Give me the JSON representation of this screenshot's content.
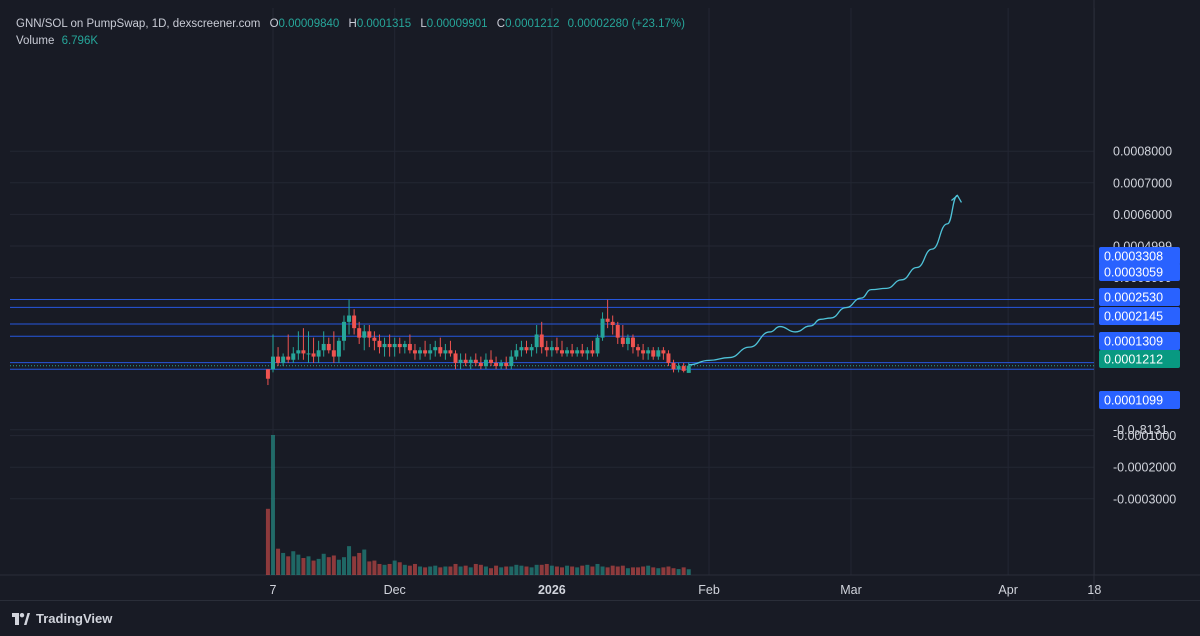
{
  "legend": {
    "pair": "GNN/SOL on PumpSwap, 1D, dexscreener.com",
    "o_key": "O",
    "o_val": "0.00009840",
    "h_key": "H",
    "h_val": "0.0001315",
    "l_key": "L",
    "l_val": "0.00009901",
    "c_key": "C",
    "c_val": "0.0001212",
    "change": "0.00002280 (+23.17%)",
    "volume_key": "Volume",
    "volume_val": "6.796K"
  },
  "footer": {
    "brand": "TradingView"
  },
  "colors": {
    "background": "#181b25",
    "grid": "#232733",
    "up": "#26a69a",
    "down": "#ef5350",
    "level_line": "#2962ff",
    "level_tag": "#2962ff",
    "price_tag": "#089981",
    "projection": "#4fc3d9",
    "axis_text": "#d1d4dc"
  },
  "chart_data": {
    "type": "candlestick",
    "y_tick_labels": [
      "0.0008000",
      "0.0007000",
      "0.0006000",
      "0.0004999",
      "0.0003999",
      "-0.0₀8131",
      "-0.0001000",
      "-0.0002000",
      "-0.0003000"
    ],
    "y_tick_values": [
      0.0008,
      0.0007,
      0.0006,
      0.0005,
      0.0004,
      -8.131e-05,
      -0.0001,
      -0.0002,
      -0.0003
    ],
    "x_tick_labels": [
      "7",
      "Dec",
      "2026",
      "Feb",
      "Mar",
      "Apr",
      "18"
    ],
    "x_tick_dates": [
      "2025-11-07",
      "2025-12-01",
      "2026-01-01",
      "2026-02-01",
      "2026-03-01",
      "2026-04-01",
      "2026-04-18"
    ],
    "horizontal_levels": [
      0.0003308,
      0.0003059,
      0.000253,
      0.0002145,
      0.0001309,
      0.0001099
    ],
    "level_labels": [
      "0.0003308",
      "0.0003059",
      "0.0002530",
      "0.0002145",
      "0.0001309",
      "0.0001099"
    ],
    "last_price": 0.0001212,
    "last_price_label": "0.0001212",
    "candles": [
      {
        "date": "2025-11-06",
        "o": 0.00011,
        "h": 0.00011,
        "l": 6e-05,
        "c": 8e-05
      },
      {
        "date": "2025-11-07",
        "o": 0.00011,
        "h": 0.00022,
        "l": 0.0001,
        "c": 0.00015
      },
      {
        "date": "2025-11-08",
        "o": 0.00015,
        "h": 0.00018,
        "l": 0.00012,
        "c": 0.00013
      },
      {
        "date": "2025-11-09",
        "o": 0.00013,
        "h": 0.00016,
        "l": 0.00012,
        "c": 0.00015
      },
      {
        "date": "2025-11-10",
        "o": 0.00015,
        "h": 0.00022,
        "l": 0.00013,
        "c": 0.00014
      },
      {
        "date": "2025-11-11",
        "o": 0.00014,
        "h": 0.00018,
        "l": 0.00013,
        "c": 0.00016
      },
      {
        "date": "2025-11-12",
        "o": 0.00016,
        "h": 0.00023,
        "l": 0.00014,
        "c": 0.00017
      },
      {
        "date": "2025-11-13",
        "o": 0.00017,
        "h": 0.00024,
        "l": 0.00014,
        "c": 0.00016
      },
      {
        "date": "2025-11-14",
        "o": 0.00016,
        "h": 0.00023,
        "l": 0.00013,
        "c": 0.00016
      },
      {
        "date": "2025-11-15",
        "o": 0.00016,
        "h": 0.00021,
        "l": 0.00013,
        "c": 0.00015
      },
      {
        "date": "2025-11-16",
        "o": 0.00015,
        "h": 0.0002,
        "l": 0.00013,
        "c": 0.00017
      },
      {
        "date": "2025-11-17",
        "o": 0.00017,
        "h": 0.00023,
        "l": 0.00015,
        "c": 0.00019
      },
      {
        "date": "2025-11-18",
        "o": 0.00019,
        "h": 0.00021,
        "l": 0.00016,
        "c": 0.00017
      },
      {
        "date": "2025-11-19",
        "o": 0.00017,
        "h": 0.00023,
        "l": 0.00013,
        "c": 0.00015
      },
      {
        "date": "2025-11-20",
        "o": 0.00015,
        "h": 0.00021,
        "l": 0.00013,
        "c": 0.0002
      },
      {
        "date": "2025-11-21",
        "o": 0.0002,
        "h": 0.00028,
        "l": 0.00017,
        "c": 0.00026
      },
      {
        "date": "2025-11-22",
        "o": 0.00026,
        "h": 0.00033,
        "l": 0.00022,
        "c": 0.00028
      },
      {
        "date": "2025-11-23",
        "o": 0.00028,
        "h": 0.0003,
        "l": 0.00022,
        "c": 0.00024
      },
      {
        "date": "2025-11-24",
        "o": 0.00024,
        "h": 0.00026,
        "l": 0.00019,
        "c": 0.00021
      },
      {
        "date": "2025-11-25",
        "o": 0.00021,
        "h": 0.00025,
        "l": 0.00017,
        "c": 0.00023
      },
      {
        "date": "2025-11-26",
        "o": 0.00023,
        "h": 0.00025,
        "l": 0.00018,
        "c": 0.00021
      },
      {
        "date": "2025-11-27",
        "o": 0.00021,
        "h": 0.00023,
        "l": 0.00017,
        "c": 0.0002
      },
      {
        "date": "2025-11-28",
        "o": 0.0002,
        "h": 0.00022,
        "l": 0.00016,
        "c": 0.00018
      },
      {
        "date": "2025-11-29",
        "o": 0.00018,
        "h": 0.00021,
        "l": 0.00015,
        "c": 0.00019
      },
      {
        "date": "2025-11-30",
        "o": 0.00019,
        "h": 0.00022,
        "l": 0.00015,
        "c": 0.00018
      },
      {
        "date": "2025-12-01",
        "o": 0.00018,
        "h": 0.00021,
        "l": 0.00015,
        "c": 0.00019
      },
      {
        "date": "2025-12-02",
        "o": 0.00019,
        "h": 0.00021,
        "l": 0.00016,
        "c": 0.00018
      },
      {
        "date": "2025-12-03",
        "o": 0.00018,
        "h": 0.0002,
        "l": 0.00016,
        "c": 0.00019
      },
      {
        "date": "2025-12-04",
        "o": 0.00019,
        "h": 0.00022,
        "l": 0.00016,
        "c": 0.00017
      },
      {
        "date": "2025-12-05",
        "o": 0.00017,
        "h": 0.00019,
        "l": 0.00014,
        "c": 0.00016
      },
      {
        "date": "2025-12-06",
        "o": 0.00016,
        "h": 0.00018,
        "l": 0.00014,
        "c": 0.00017
      },
      {
        "date": "2025-12-07",
        "o": 0.00017,
        "h": 0.0002,
        "l": 0.00015,
        "c": 0.00016
      },
      {
        "date": "2025-12-08",
        "o": 0.00016,
        "h": 0.00019,
        "l": 0.00014,
        "c": 0.00017
      },
      {
        "date": "2025-12-09",
        "o": 0.00017,
        "h": 0.0002,
        "l": 0.00015,
        "c": 0.00018
      },
      {
        "date": "2025-12-10",
        "o": 0.00018,
        "h": 0.00021,
        "l": 0.00015,
        "c": 0.00016
      },
      {
        "date": "2025-12-11",
        "o": 0.00016,
        "h": 0.00019,
        "l": 0.00014,
        "c": 0.00017
      },
      {
        "date": "2025-12-12",
        "o": 0.00017,
        "h": 0.0002,
        "l": 0.00015,
        "c": 0.00016
      },
      {
        "date": "2025-12-13",
        "o": 0.00016,
        "h": 0.00017,
        "l": 0.00011,
        "c": 0.00013
      },
      {
        "date": "2025-12-14",
        "o": 0.00013,
        "h": 0.00016,
        "l": 0.00011,
        "c": 0.00014
      },
      {
        "date": "2025-12-15",
        "o": 0.00014,
        "h": 0.00016,
        "l": 0.00012,
        "c": 0.00013
      },
      {
        "date": "2025-12-16",
        "o": 0.00013,
        "h": 0.00015,
        "l": 0.00011,
        "c": 0.00014
      },
      {
        "date": "2025-12-17",
        "o": 0.00014,
        "h": 0.00016,
        "l": 0.00012,
        "c": 0.00013
      },
      {
        "date": "2025-12-18",
        "o": 0.00013,
        "h": 0.00015,
        "l": 0.00011,
        "c": 0.00012
      },
      {
        "date": "2025-12-19",
        "o": 0.00012,
        "h": 0.00016,
        "l": 0.00011,
        "c": 0.00014
      },
      {
        "date": "2025-12-20",
        "o": 0.00014,
        "h": 0.00017,
        "l": 0.00012,
        "c": 0.00013
      },
      {
        "date": "2025-12-21",
        "o": 0.00013,
        "h": 0.00015,
        "l": 0.00011,
        "c": 0.00012
      },
      {
        "date": "2025-12-22",
        "o": 0.00012,
        "h": 0.00014,
        "l": 0.00011,
        "c": 0.00013
      },
      {
        "date": "2025-12-23",
        "o": 0.00013,
        "h": 0.00015,
        "l": 0.00011,
        "c": 0.00012
      },
      {
        "date": "2025-12-24",
        "o": 0.00012,
        "h": 0.00017,
        "l": 0.00011,
        "c": 0.00015
      },
      {
        "date": "2025-12-25",
        "o": 0.00015,
        "h": 0.00019,
        "l": 0.00014,
        "c": 0.00017
      },
      {
        "date": "2025-12-26",
        "o": 0.00017,
        "h": 0.0002,
        "l": 0.00015,
        "c": 0.00018
      },
      {
        "date": "2025-12-27",
        "o": 0.00018,
        "h": 0.0002,
        "l": 0.00016,
        "c": 0.00017
      },
      {
        "date": "2025-12-28",
        "o": 0.00017,
        "h": 0.00019,
        "l": 0.00015,
        "c": 0.00018
      },
      {
        "date": "2025-12-29",
        "o": 0.00018,
        "h": 0.00025,
        "l": 0.00016,
        "c": 0.00022
      },
      {
        "date": "2025-12-30",
        "o": 0.00022,
        "h": 0.00026,
        "l": 0.00016,
        "c": 0.00018
      },
      {
        "date": "2025-12-31",
        "o": 0.00018,
        "h": 0.0002,
        "l": 0.00015,
        "c": 0.00017
      },
      {
        "date": "2026-01-01",
        "o": 0.00017,
        "h": 0.0002,
        "l": 0.00015,
        "c": 0.00018
      },
      {
        "date": "2026-01-02",
        "o": 0.00018,
        "h": 0.00021,
        "l": 0.00016,
        "c": 0.00017
      },
      {
        "date": "2026-01-03",
        "o": 0.00017,
        "h": 0.0002,
        "l": 0.00015,
        "c": 0.00016
      },
      {
        "date": "2026-01-04",
        "o": 0.00016,
        "h": 0.00018,
        "l": 0.00015,
        "c": 0.00017
      },
      {
        "date": "2026-01-05",
        "o": 0.00017,
        "h": 0.00019,
        "l": 0.00015,
        "c": 0.00016
      },
      {
        "date": "2026-01-06",
        "o": 0.00016,
        "h": 0.00018,
        "l": 0.00015,
        "c": 0.00017
      },
      {
        "date": "2026-01-07",
        "o": 0.00017,
        "h": 0.00019,
        "l": 0.00015,
        "c": 0.00016
      },
      {
        "date": "2026-01-08",
        "o": 0.00016,
        "h": 0.00018,
        "l": 0.00014,
        "c": 0.00017
      },
      {
        "date": "2026-01-09",
        "o": 0.00017,
        "h": 0.0002,
        "l": 0.00015,
        "c": 0.00016
      },
      {
        "date": "2026-01-10",
        "o": 0.00016,
        "h": 0.00022,
        "l": 0.00015,
        "c": 0.00021
      },
      {
        "date": "2026-01-11",
        "o": 0.00021,
        "h": 0.00029,
        "l": 0.0002,
        "c": 0.00027
      },
      {
        "date": "2026-01-12",
        "o": 0.00027,
        "h": 0.00033,
        "l": 0.00024,
        "c": 0.00026
      },
      {
        "date": "2026-01-13",
        "o": 0.00026,
        "h": 0.00028,
        "l": 0.00022,
        "c": 0.00025
      },
      {
        "date": "2026-01-14",
        "o": 0.00025,
        "h": 0.00026,
        "l": 0.00019,
        "c": 0.00021
      },
      {
        "date": "2026-01-15",
        "o": 0.00021,
        "h": 0.00025,
        "l": 0.00018,
        "c": 0.00019
      },
      {
        "date": "2026-01-16",
        "o": 0.00019,
        "h": 0.00022,
        "l": 0.00017,
        "c": 0.00021
      },
      {
        "date": "2026-01-17",
        "o": 0.00021,
        "h": 0.00022,
        "l": 0.00016,
        "c": 0.00018
      },
      {
        "date": "2026-01-18",
        "o": 0.00018,
        "h": 0.00019,
        "l": 0.00015,
        "c": 0.00017
      },
      {
        "date": "2026-01-19",
        "o": 0.00017,
        "h": 0.00019,
        "l": 0.00014,
        "c": 0.00016
      },
      {
        "date": "2026-01-20",
        "o": 0.00016,
        "h": 0.00018,
        "l": 0.00014,
        "c": 0.00017
      },
      {
        "date": "2026-01-21",
        "o": 0.00017,
        "h": 0.00018,
        "l": 0.00014,
        "c": 0.00015
      },
      {
        "date": "2026-01-22",
        "o": 0.00015,
        "h": 0.00018,
        "l": 0.00014,
        "c": 0.00017
      },
      {
        "date": "2026-01-23",
        "o": 0.00017,
        "h": 0.00018,
        "l": 0.00014,
        "c": 0.00016
      },
      {
        "date": "2026-01-24",
        "o": 0.00016,
        "h": 0.00017,
        "l": 0.00012,
        "c": 0.00013
      },
      {
        "date": "2026-01-25",
        "o": 0.00013,
        "h": 0.00014,
        "l": 0.0001,
        "c": 0.00011
      },
      {
        "date": "2026-01-26",
        "o": 0.00011,
        "h": 0.00013,
        "l": 0.0001,
        "c": 0.00012
      },
      {
        "date": "2026-01-27",
        "o": 0.00012,
        "h": 0.00013,
        "l": 0.0001,
        "c": 0.000105
      },
      {
        "date": "2026-01-28",
        "o": 9.84e-05,
        "h": 0.0001315,
        "l": 9.901e-05,
        "c": 0.0001212
      }
    ],
    "volume_max_k": 165,
    "volumes_k": [
      78,
      165,
      31,
      26,
      22,
      28,
      24,
      20,
      22,
      17,
      19,
      25,
      21,
      23,
      18,
      21,
      34,
      22,
      26,
      30,
      16,
      17,
      13,
      12,
      13,
      17,
      15,
      12,
      11,
      13,
      10,
      9,
      10,
      11,
      9,
      10,
      10,
      13,
      10,
      11,
      9,
      13,
      12,
      10,
      8,
      11,
      9,
      10,
      10,
      12,
      11,
      10,
      9,
      12,
      12,
      13,
      11,
      10,
      9,
      11,
      10,
      9,
      11,
      12,
      10,
      13,
      10,
      9,
      11,
      10,
      11,
      8,
      9,
      9,
      10,
      11,
      9,
      8,
      9,
      10,
      8,
      7,
      9,
      6.796
    ],
    "projection_path": [
      {
        "date": "2026-01-28",
        "value": 0.000124
      },
      {
        "date": "2026-02-01",
        "value": 0.000138
      },
      {
        "date": "2026-02-05",
        "value": 0.000147
      },
      {
        "date": "2026-02-09",
        "value": 0.00018
      },
      {
        "date": "2026-02-13",
        "value": 0.000228
      },
      {
        "date": "2026-02-15",
        "value": 0.000245
      },
      {
        "date": "2026-02-18",
        "value": 0.000228
      },
      {
        "date": "2026-02-21",
        "value": 0.000247
      },
      {
        "date": "2026-02-23",
        "value": 0.000268
      },
      {
        "date": "2026-02-25",
        "value": 0.000272
      },
      {
        "date": "2026-02-28",
        "value": 0.000305
      },
      {
        "date": "2026-03-03",
        "value": 0.000335
      },
      {
        "date": "2026-03-05",
        "value": 0.000362
      },
      {
        "date": "2026-03-08",
        "value": 0.000366
      },
      {
        "date": "2026-03-11",
        "value": 0.000393
      },
      {
        "date": "2026-03-14",
        "value": 0.000432
      },
      {
        "date": "2026-03-17",
        "value": 0.00049
      },
      {
        "date": "2026-03-20",
        "value": 0.00057
      },
      {
        "date": "2026-03-22",
        "value": 0.00066
      }
    ]
  }
}
